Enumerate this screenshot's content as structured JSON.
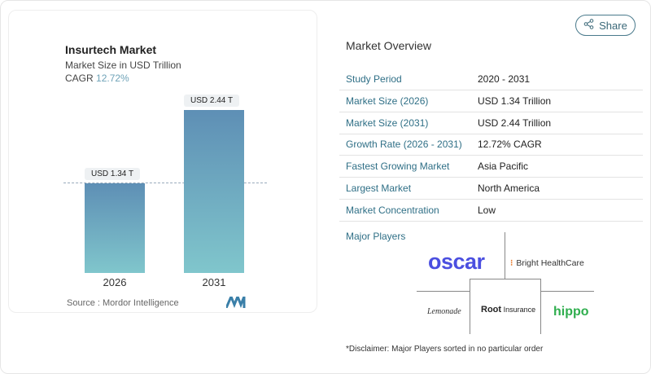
{
  "share_label": "Share",
  "chart": {
    "title": "Insurtech Market",
    "subtitle": "Market Size in USD Trillion",
    "cagr_label": "CAGR",
    "cagr_value": "12.72%",
    "source": "Source :  Mordor Intelligence"
  },
  "chart_data": {
    "type": "bar",
    "categories": [
      "2026",
      "2031"
    ],
    "values": [
      1.34,
      2.44
    ],
    "data_labels": [
      "USD 1.34 T",
      "USD 2.44 T"
    ],
    "title": "Insurtech Market",
    "ylabel": "Market Size in USD Trillion",
    "colors": [
      "#5e8fb5",
      "#80c6cc"
    ]
  },
  "overview": {
    "title": "Market Overview",
    "rows": [
      {
        "k": "Study Period",
        "v": "2020 - 2031"
      },
      {
        "k": "Market Size (2026)",
        "v": "USD 1.34 Trillion"
      },
      {
        "k": "Market Size (2031)",
        "v": "USD 2.44 Trillion"
      },
      {
        "k": "Growth Rate (2026 - 2031)",
        "v": "12.72% CAGR"
      },
      {
        "k": "Fastest Growing Market",
        "v": "Asia Pacific"
      },
      {
        "k": "Largest Market",
        "v": "North America"
      },
      {
        "k": "Market Concentration",
        "v": "Low"
      }
    ],
    "major_players_label": "Major Players",
    "players": [
      "oscar",
      "Bright HealthCare",
      "Lemonade",
      "Root",
      "Insurance",
      "hippo"
    ],
    "disclaimer": "*Disclaimer: Major Players sorted in no particular order"
  }
}
